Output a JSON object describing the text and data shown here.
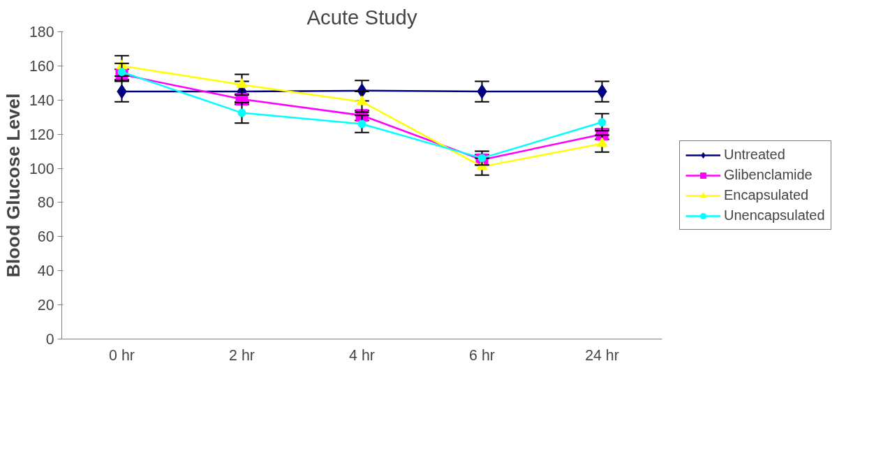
{
  "chart_data": {
    "type": "line",
    "title": "Acute Study",
    "ylabel": "Blood Glucose Level",
    "categories": [
      "0 hr",
      "2 hr",
      "4 hr",
      "6 hr",
      "24 hr"
    ],
    "series": [
      {
        "name": "Untreated",
        "color": "#000080",
        "marker": "diamond",
        "values": [
          145,
          145,
          145.5,
          145,
          145
        ],
        "errors": [
          6,
          6,
          6,
          6,
          6
        ]
      },
      {
        "name": "Glibenclamide",
        "color": "#ff00ff",
        "marker": "square",
        "values": [
          155,
          140.5,
          131,
          105,
          120
        ],
        "errors": [
          3,
          3,
          3,
          3,
          3
        ]
      },
      {
        "name": "Encapsulated",
        "color": "#ffff00",
        "marker": "triangle",
        "values": [
          160,
          149,
          139,
          101,
          114.5
        ],
        "errors": [
          6,
          6,
          6,
          5,
          5
        ]
      },
      {
        "name": "Unencapsulated",
        "color": "#00ffff",
        "marker": "circle",
        "values": [
          156.5,
          132.5,
          126,
          106,
          127
        ],
        "errors": [
          5,
          6,
          5,
          4,
          5
        ]
      }
    ],
    "ylim": [
      0,
      180
    ],
    "yticks": [
      0,
      20,
      40,
      60,
      80,
      100,
      120,
      140,
      160,
      180
    ],
    "grid": false,
    "legend": "right",
    "line_style": "solid"
  }
}
